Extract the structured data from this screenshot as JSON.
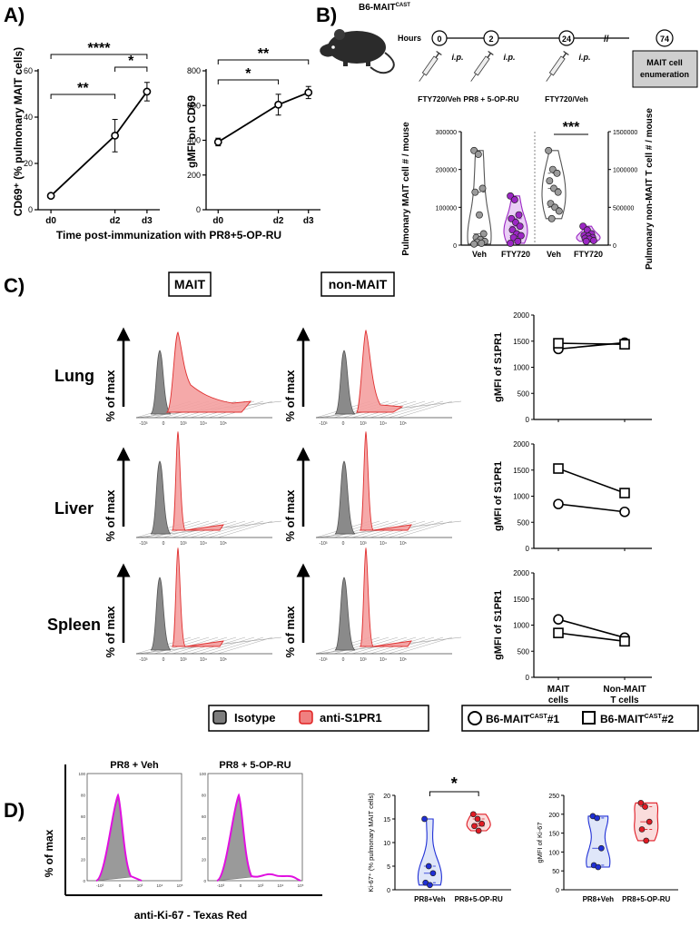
{
  "figure": {
    "panel_labels": [
      "A)",
      "B)",
      "C)",
      "D)"
    ]
  },
  "panelA": {
    "xlabel": "Time post-immunization with PR8+5-OP-RU",
    "chart1": {
      "type": "line",
      "ylabel": "CD69⁺ (% pulmonary MAIT cells)",
      "ylim": [
        0,
        60
      ],
      "yticks": [
        "0",
        "20",
        "40",
        "60"
      ],
      "categories": [
        "d0",
        "d2",
        "d3"
      ],
      "x": [
        0,
        2,
        3
      ],
      "values": [
        6,
        32,
        51
      ],
      "errors": [
        0.6,
        7,
        4
      ],
      "significance": [
        {
          "from": 0,
          "to": 2,
          "label": "****"
        },
        {
          "from": 1,
          "to": 2,
          "label": "*"
        },
        {
          "from": 0,
          "to": 1,
          "label": "**"
        }
      ]
    },
    "chart2": {
      "type": "line",
      "ylabel": "gMFI on CD69",
      "ylim": [
        0,
        800
      ],
      "yticks": [
        "0",
        "200",
        "400",
        "600",
        "800"
      ],
      "categories": [
        "d0",
        "d2",
        "d3"
      ],
      "x": [
        0,
        2,
        3
      ],
      "values": [
        390,
        605,
        675
      ],
      "errors": [
        22,
        60,
        35
      ],
      "significance": [
        {
          "from": 0,
          "to": 2,
          "label": "**"
        },
        {
          "from": 0,
          "to": 1,
          "label": "*"
        }
      ]
    }
  },
  "panelB": {
    "mouse_label": "B6-MAIT",
    "mouse_superscript": "CAST",
    "hours_label": "Hours",
    "timepoints": [
      "0",
      "2",
      "24",
      "74"
    ],
    "ip_label": "i.p.",
    "treatments": [
      "FTY720/Veh",
      "PR8 + 5-OP-RU",
      "FTY720/Veh"
    ],
    "endpoint_box": "MAIT cell enumeration",
    "violin": {
      "type": "violin",
      "ylabel_left": "Pulmonary MAIT cell # / mouse",
      "ylabel_right": "Pulmonary non-MAIT T cell # / mouse",
      "left_ylim": [
        0,
        300000
      ],
      "left_yticks": [
        "0",
        "100000",
        "200000",
        "300000"
      ],
      "right_ylim": [
        0,
        1500000
      ],
      "right_yticks": [
        "0",
        "500000",
        "1000000",
        "1500000"
      ],
      "categories": [
        "Veh",
        "FTY720",
        "Veh",
        "FTY720"
      ],
      "colors": [
        "#9a9a9a",
        "#9c27c4",
        "#9a9a9a",
        "#9c27c4"
      ],
      "groups": [
        {
          "name": "MAIT Veh",
          "axis": "left",
          "values": [
            250000,
            240000,
            150000,
            140000,
            80000,
            30000,
            20000,
            15000,
            10000,
            8000,
            5000,
            3000
          ]
        },
        {
          "name": "MAIT FTY720",
          "axis": "left",
          "values": [
            130000,
            120000,
            80000,
            70000,
            60000,
            50000,
            40000,
            30000,
            25000,
            20000,
            10000,
            5000
          ]
        },
        {
          "name": "non-MAIT Veh",
          "axis": "right",
          "values": [
            1250000,
            1000000,
            950000,
            850000,
            750000,
            700000,
            550000,
            500000,
            450000,
            350000
          ]
        },
        {
          "name": "non-MAIT FTY720",
          "axis": "right",
          "values": [
            250000,
            200000,
            150000,
            130000,
            120000,
            100000,
            90000,
            80000,
            60000,
            50000
          ]
        }
      ],
      "significance": {
        "from": 2,
        "to": 3,
        "label": "***"
      }
    }
  },
  "panelC": {
    "col_headers": [
      "MAIT",
      "non-MAIT"
    ],
    "rows": [
      "Lung",
      "Liver",
      "Spleen"
    ],
    "hist_ylabel": "% of max",
    "hist_ticks": [
      "-10³",
      "0",
      "10³",
      "10⁴",
      "10⁵"
    ],
    "gmfi": {
      "type": "line",
      "ylabel": "gMFI of S1PR1",
      "ylim": [
        0,
        2000
      ],
      "yticks": [
        "0",
        "500",
        "1000",
        "1500",
        "2000"
      ],
      "categories": [
        "MAIT cells",
        "Non-MAIT T cells"
      ],
      "category_lines": [
        [
          "MAIT",
          "cells"
        ],
        [
          "Non-MAIT",
          "T cells"
        ]
      ],
      "series_names": [
        "B6-MAITᶜᴬˢᵀ#1",
        "B6-MAITᶜᴬˢᵀ#2"
      ],
      "tissues": [
        {
          "name": "Lung",
          "series": [
            {
              "name": "#1",
              "marker": "circle",
              "values": [
                1350,
                1470
              ]
            },
            {
              "name": "#2",
              "marker": "square",
              "values": [
                1460,
                1440
              ]
            }
          ]
        },
        {
          "name": "Liver",
          "series": [
            {
              "name": "#1",
              "marker": "circle",
              "values": [
                850,
                700
              ]
            },
            {
              "name": "#2",
              "marker": "square",
              "values": [
                1530,
                1060
              ]
            }
          ]
        },
        {
          "name": "Spleen",
          "series": [
            {
              "name": "#1",
              "marker": "circle",
              "values": [
                1110,
                760
              ]
            },
            {
              "name": "#2",
              "marker": "square",
              "values": [
                850,
                690
              ]
            }
          ]
        }
      ]
    },
    "legend_hist": [
      "Isotype",
      "anti-S1PR1"
    ],
    "legend_mice": {
      "base": "B6-MAIT",
      "sup": "CAST",
      "suffixes": [
        "#1",
        "#2"
      ]
    }
  },
  "panelD": {
    "flow_titles": [
      "PR8 + Veh",
      "PR8 + 5-OP-RU"
    ],
    "flow_ylabel": "% of max",
    "flow_xlabel": "anti-Ki-67 - Texas Red",
    "flow_yticks": [
      "0",
      "20",
      "40",
      "60",
      "80",
      "100"
    ],
    "flow_xticks": [
      "-10³",
      "0",
      "10³",
      "10⁴",
      "10⁵"
    ],
    "ki67_pct": {
      "type": "violin",
      "ylabel": "Ki-67⁺ (% pulmonary MAIT cells)",
      "ylim": [
        0,
        20
      ],
      "yticks": [
        "0",
        "5",
        "10",
        "15",
        "20"
      ],
      "categories": [
        "PR8+Veh",
        "PR8+5-OP-RU"
      ],
      "colors": [
        "#1f2fd6",
        "#e01b24"
      ],
      "groups": [
        {
          "name": "PR8+Veh",
          "values": [
            15,
            5,
            3.5,
            1.5,
            1
          ]
        },
        {
          "name": "PR8+5-OP-RU",
          "values": [
            16,
            15,
            14,
            13.5,
            12.5
          ]
        }
      ],
      "significance": {
        "from": 0,
        "to": 1,
        "label": "*"
      }
    },
    "ki67_gmfi": {
      "type": "violin",
      "ylabel": "gMFI of Ki-67",
      "ylim": [
        0,
        250
      ],
      "yticks": [
        "0",
        "50",
        "100",
        "150",
        "200",
        "250"
      ],
      "categories": [
        "PR8+Veh",
        "PR8+5-OP-RU"
      ],
      "colors": [
        "#1f2fd6",
        "#e01b24"
      ],
      "groups": [
        {
          "name": "PR8+Veh",
          "values": [
            195,
            190,
            110,
            65,
            60
          ]
        },
        {
          "name": "PR8+5-OP-RU",
          "values": [
            230,
            220,
            180,
            160,
            130
          ]
        }
      ]
    }
  }
}
